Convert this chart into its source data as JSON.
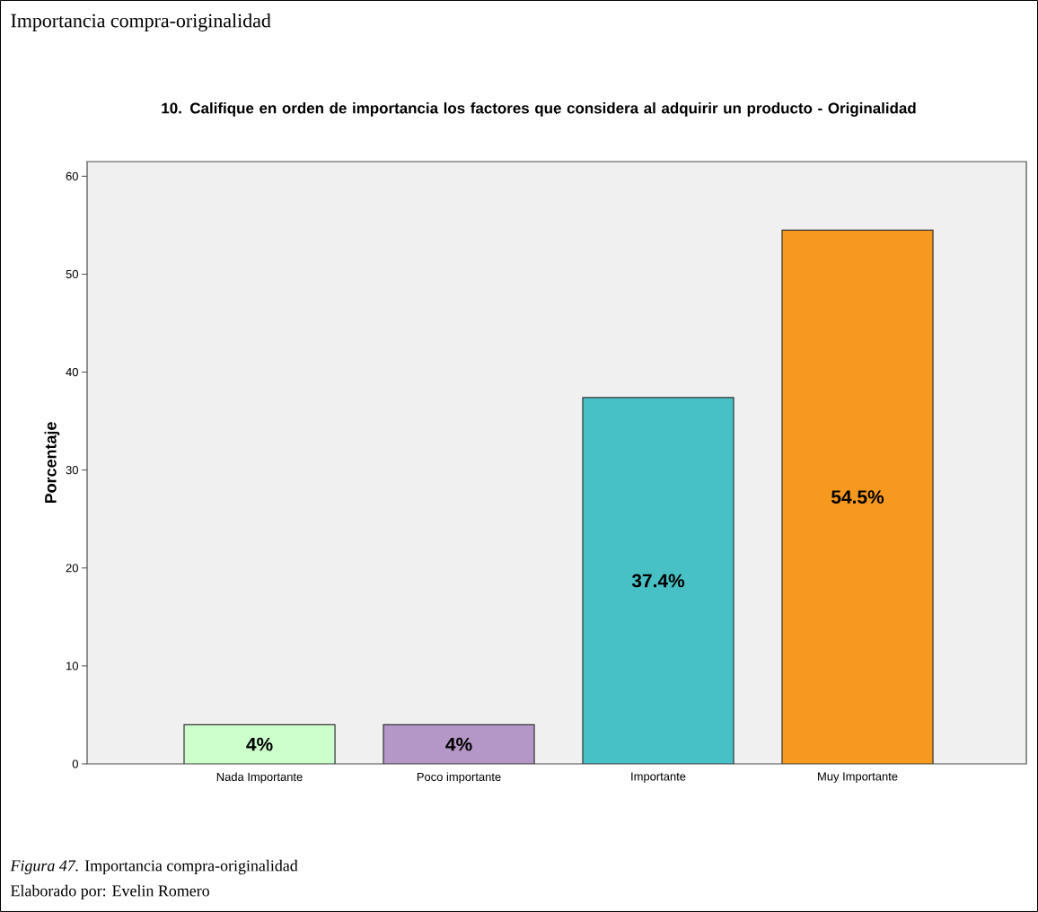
{
  "chart_data": {
    "type": "bar",
    "title": "Importancia compra-originalidad",
    "subtitle": "10. Califique en orden de importancia los factores que considera al adquirir un producto - Originalidad",
    "ylabel": "Porcentaje",
    "categories": [
      "Nada Importante",
      "Poco importante",
      "Importante",
      "Muy Importante"
    ],
    "values": [
      4,
      4,
      37.4,
      54.5
    ],
    "value_labels": [
      "4%",
      "4%",
      "37.4%",
      "54.5%"
    ],
    "colors": [
      "#ccffcc",
      "#b497c7",
      "#48c1c6",
      "#f7991f"
    ],
    "ylim": [
      0,
      61.5
    ],
    "yticks": [
      0,
      10,
      20,
      30,
      40,
      50,
      60
    ],
    "grid": false,
    "annotations": [
      "*Figura 47.* Importancia compra-originalidad",
      "Elaborado por: Evelin Romero"
    ]
  }
}
